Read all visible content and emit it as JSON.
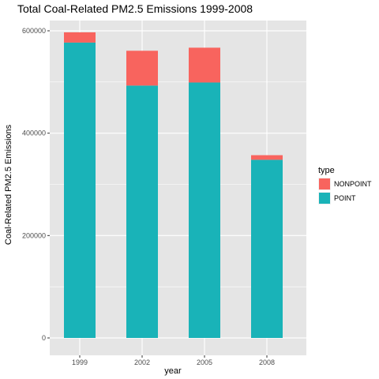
{
  "chart_data": {
    "type": "bar",
    "stacked": true,
    "title": "Total Coal-Related PM2.5 Emissions 1999-2008",
    "xlabel": "year",
    "ylabel": "Coal-Related PM2.5 Emissions",
    "categories": [
      "1999",
      "2002",
      "2005",
      "2008"
    ],
    "series": [
      {
        "name": "POINT",
        "color": "#19b3b8",
        "values": [
          577000,
          493000,
          499000,
          348000
        ]
      },
      {
        "name": "NONPOINT",
        "color": "#f8645e",
        "values": [
          20000,
          68000,
          68000,
          9000
        ]
      }
    ],
    "ylim": [
      0,
      600000
    ],
    "yticks": [
      "0",
      "200000",
      "400000",
      "600000"
    ],
    "legend": {
      "title": "type",
      "placement": "right",
      "entries": [
        {
          "label": "NONPOINT",
          "color": "#f8645e"
        },
        {
          "label": "POINT",
          "color": "#19b3b8"
        }
      ]
    },
    "grid": true,
    "panel_background": "#e5e5e5",
    "grid_color": "#ffffff"
  }
}
